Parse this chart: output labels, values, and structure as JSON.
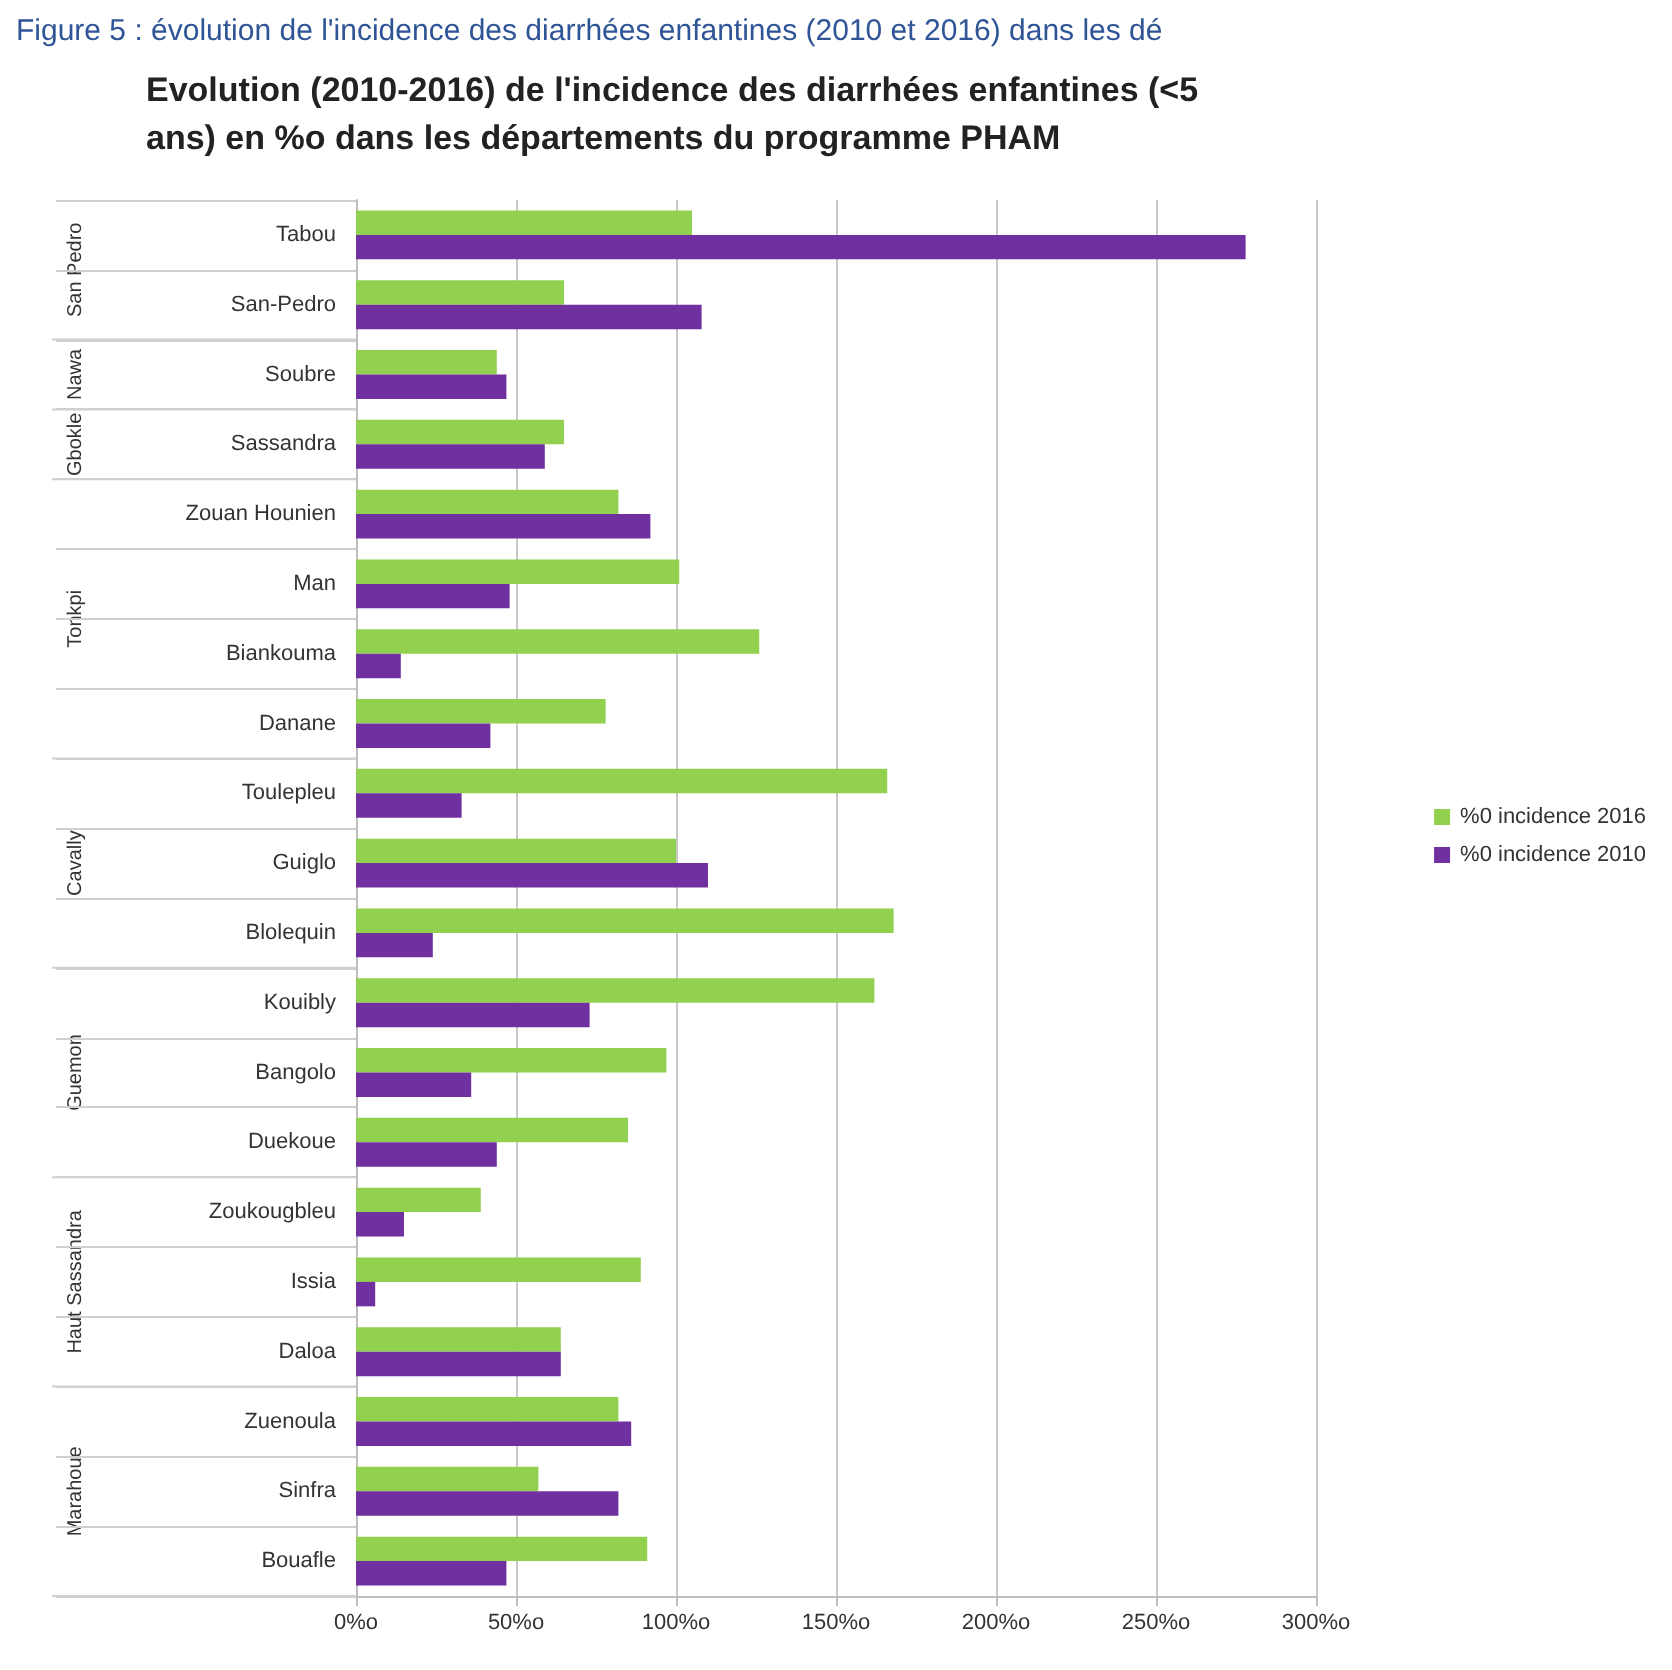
{
  "chart_data": {
    "type": "bar",
    "orientation": "horizontal",
    "title": "Evolution (2010-2016) de l'incidence des diarrhées enfantines (<5 ans) en %o dans les départements du programme PHAM",
    "categories": [
      "Tabou",
      "San-Pedro",
      "Soubre",
      "Sassandra",
      "Zouan Hounien",
      "Man",
      "Biankouma",
      "Danane",
      "Toulepleu",
      "Guiglo",
      "Blolequin",
      "Kouibly",
      "Bangolo",
      "Duekoue",
      "Zoukougbleu",
      "Issia",
      "Daloa",
      "Zuenoula",
      "Sinfra",
      "Bouafle"
    ],
    "series": [
      {
        "name": "%0 incidence 2016",
        "color": "#92d050",
        "values": [
          105,
          65,
          44,
          65,
          82,
          101,
          126,
          78,
          166,
          100,
          168,
          162,
          97,
          85,
          39,
          89,
          64,
          82,
          57,
          91
        ]
      },
      {
        "name": "%0 incidence 2010",
        "color": "#7030a0",
        "values": [
          278,
          108,
          47,
          59,
          92,
          48,
          14,
          42,
          33,
          110,
          24,
          73,
          36,
          44,
          15,
          6,
          64,
          86,
          82,
          47
        ]
      }
    ],
    "xlim": [
      0,
      300
    ],
    "xticks": [
      {
        "value": 0,
        "label": "0%o"
      },
      {
        "value": 50,
        "label": "50%o"
      },
      {
        "value": 100,
        "label": "100%o"
      },
      {
        "value": 150,
        "label": "150%o"
      },
      {
        "value": 200,
        "label": "200%o"
      },
      {
        "value": 250,
        "label": "250%o"
      },
      {
        "value": 300,
        "label": "300%o"
      }
    ],
    "grid": "x",
    "legend": "right",
    "annotations": [
      "Figure 5 : évolution de l'incidence des diarrhées enfantines (2010 et 2016) dans les dé",
      "San Pedro",
      "Nawa",
      "Gbokle",
      "Tonkpi",
      "Cavally",
      "Guemon",
      "Haut Sassandra",
      "Marahoue"
    ]
  }
}
